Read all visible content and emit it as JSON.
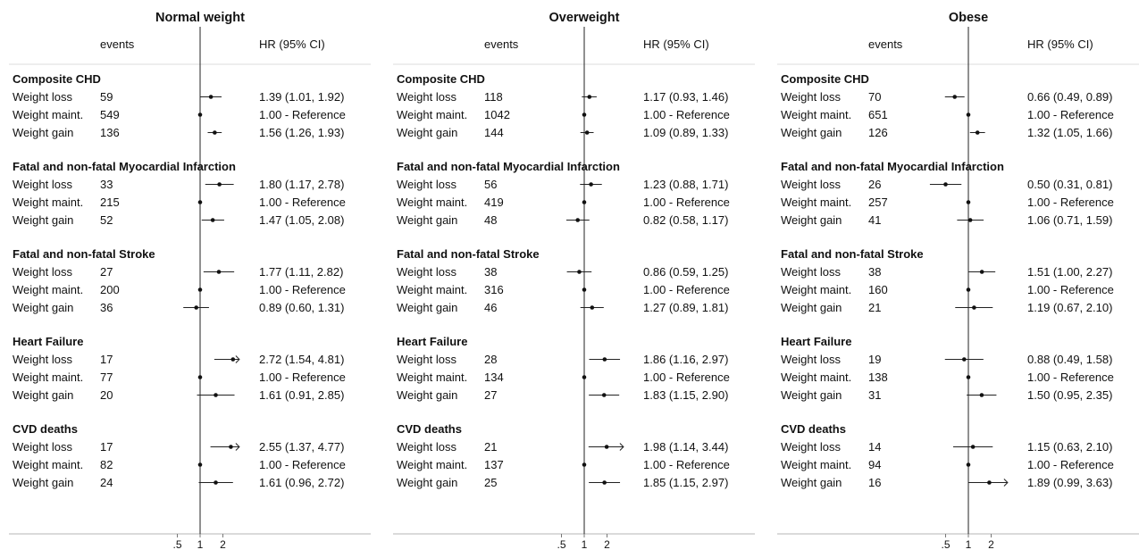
{
  "chart_data": {
    "type": "forest",
    "x_scale": "log",
    "x_ticks": [
      {
        "value": 0.5,
        "label": ".5"
      },
      {
        "value": 1,
        "label": "1"
      },
      {
        "value": 2,
        "label": "2"
      }
    ],
    "column_headers": {
      "events": "events",
      "hr": "HR (95% CI)"
    },
    "row_labels": [
      "Weight loss",
      "Weight maint.",
      "Weight gain"
    ],
    "panels": [
      {
        "title": "Normal weight",
        "groups": [
          {
            "name": "Composite CHD",
            "rows": [
              {
                "events": "59",
                "hr": 1.39,
                "lo": 1.01,
                "hi": 1.92,
                "text": "1.39 (1.01, 1.92)"
              },
              {
                "events": "549",
                "hr": 1,
                "lo": null,
                "hi": null,
                "text": "1.00 - Reference"
              },
              {
                "events": "136",
                "hr": 1.56,
                "lo": 1.26,
                "hi": 1.93,
                "text": "1.56 (1.26, 1.93)"
              }
            ]
          },
          {
            "name": "Fatal and non-fatal Myocardial Infarction",
            "rows": [
              {
                "events": "33",
                "hr": 1.8,
                "lo": 1.17,
                "hi": 2.78,
                "text": "1.80 (1.17, 2.78)"
              },
              {
                "events": "215",
                "hr": 1,
                "lo": null,
                "hi": null,
                "text": "1.00 - Reference"
              },
              {
                "events": "52",
                "hr": 1.47,
                "lo": 1.05,
                "hi": 2.08,
                "text": "1.47 (1.05, 2.08)"
              }
            ]
          },
          {
            "name": "Fatal and non-fatal Stroke",
            "rows": [
              {
                "events": "27",
                "hr": 1.77,
                "lo": 1.11,
                "hi": 2.82,
                "text": "1.77 (1.11, 2.82)"
              },
              {
                "events": "200",
                "hr": 1,
                "lo": null,
                "hi": null,
                "text": "1.00 - Reference"
              },
              {
                "events": "36",
                "hr": 0.89,
                "lo": 0.6,
                "hi": 1.31,
                "text": "0.89 (0.60, 1.31)"
              }
            ]
          },
          {
            "name": "Heart Failure",
            "rows": [
              {
                "events": "17",
                "hr": 2.72,
                "lo": 1.54,
                "hi": 4.81,
                "text": "2.72 (1.54, 4.81)"
              },
              {
                "events": "77",
                "hr": 1,
                "lo": null,
                "hi": null,
                "text": "1.00 - Reference"
              },
              {
                "events": "20",
                "hr": 1.61,
                "lo": 0.91,
                "hi": 2.85,
                "text": "1.61 (0.91, 2.85)"
              }
            ]
          },
          {
            "name": "CVD deaths",
            "rows": [
              {
                "events": "17",
                "hr": 2.55,
                "lo": 1.37,
                "hi": 4.77,
                "text": "2.55 (1.37, 4.77)"
              },
              {
                "events": "82",
                "hr": 1,
                "lo": null,
                "hi": null,
                "text": "1.00 - Reference"
              },
              {
                "events": "24",
                "hr": 1.61,
                "lo": 0.96,
                "hi": 2.72,
                "text": "1.61 (0.96, 2.72)"
              }
            ]
          }
        ]
      },
      {
        "title": "Overweight",
        "groups": [
          {
            "name": "Composite CHD",
            "rows": [
              {
                "events": "118",
                "hr": 1.17,
                "lo": 0.93,
                "hi": 1.46,
                "text": "1.17 (0.93, 1.46)"
              },
              {
                "events": "1042",
                "hr": 1,
                "lo": null,
                "hi": null,
                "text": "1.00 - Reference"
              },
              {
                "events": "144",
                "hr": 1.09,
                "lo": 0.89,
                "hi": 1.33,
                "text": "1.09 (0.89, 1.33)"
              }
            ]
          },
          {
            "name": "Fatal and non-fatal Myocardial Infarction",
            "rows": [
              {
                "events": "56",
                "hr": 1.23,
                "lo": 0.88,
                "hi": 1.71,
                "text": "1.23 (0.88, 1.71)"
              },
              {
                "events": "419",
                "hr": 1,
                "lo": null,
                "hi": null,
                "text": "1.00 - Reference"
              },
              {
                "events": "48",
                "hr": 0.82,
                "lo": 0.58,
                "hi": 1.17,
                "text": "0.82 (0.58, 1.17)"
              }
            ]
          },
          {
            "name": "Fatal and non-fatal Stroke",
            "rows": [
              {
                "events": "38",
                "hr": 0.86,
                "lo": 0.59,
                "hi": 1.25,
                "text": "0.86 (0.59, 1.25)"
              },
              {
                "events": "316",
                "hr": 1,
                "lo": null,
                "hi": null,
                "text": "1.00 - Reference"
              },
              {
                "events": "46",
                "hr": 1.27,
                "lo": 0.89,
                "hi": 1.81,
                "text": "1.27 (0.89, 1.81)"
              }
            ]
          },
          {
            "name": "Heart Failure",
            "rows": [
              {
                "events": "28",
                "hr": 1.86,
                "lo": 1.16,
                "hi": 2.97,
                "text": "1.86 (1.16, 2.97)"
              },
              {
                "events": "134",
                "hr": 1,
                "lo": null,
                "hi": null,
                "text": "1.00 - Reference"
              },
              {
                "events": "27",
                "hr": 1.83,
                "lo": 1.15,
                "hi": 2.9,
                "text": "1.83 (1.15, 2.90)"
              }
            ]
          },
          {
            "name": "CVD deaths",
            "rows": [
              {
                "events": "21",
                "hr": 1.98,
                "lo": 1.14,
                "hi": 3.44,
                "text": "1.98 (1.14, 3.44)"
              },
              {
                "events": "137",
                "hr": 1,
                "lo": null,
                "hi": null,
                "text": "1.00 - Reference"
              },
              {
                "events": "25",
                "hr": 1.85,
                "lo": 1.15,
                "hi": 2.97,
                "text": "1.85 (1.15, 2.97)"
              }
            ]
          }
        ]
      },
      {
        "title": "Obese",
        "groups": [
          {
            "name": "Composite CHD",
            "rows": [
              {
                "events": "70",
                "hr": 0.66,
                "lo": 0.49,
                "hi": 0.89,
                "text": "0.66 (0.49, 0.89)"
              },
              {
                "events": "651",
                "hr": 1,
                "lo": null,
                "hi": null,
                "text": "1.00 - Reference"
              },
              {
                "events": "126",
                "hr": 1.32,
                "lo": 1.05,
                "hi": 1.66,
                "text": "1.32 (1.05, 1.66)"
              }
            ]
          },
          {
            "name": "Fatal and non-fatal Myocardial Infarction",
            "rows": [
              {
                "events": "26",
                "hr": 0.5,
                "lo": 0.31,
                "hi": 0.81,
                "text": "0.50 (0.31, 0.81)"
              },
              {
                "events": "257",
                "hr": 1,
                "lo": null,
                "hi": null,
                "text": "1.00 - Reference"
              },
              {
                "events": "41",
                "hr": 1.06,
                "lo": 0.71,
                "hi": 1.59,
                "text": "1.06 (0.71, 1.59)"
              }
            ]
          },
          {
            "name": "Fatal and non-fatal Stroke",
            "rows": [
              {
                "events": "38",
                "hr": 1.51,
                "lo": 1.0,
                "hi": 2.27,
                "text": "1.51 (1.00, 2.27)"
              },
              {
                "events": "160",
                "hr": 1,
                "lo": null,
                "hi": null,
                "text": "1.00 - Reference"
              },
              {
                "events": "21",
                "hr": 1.19,
                "lo": 0.67,
                "hi": 2.1,
                "text": "1.19 (0.67, 2.10)"
              }
            ]
          },
          {
            "name": "Heart Failure",
            "rows": [
              {
                "events": "19",
                "hr": 0.88,
                "lo": 0.49,
                "hi": 1.58,
                "text": "0.88 (0.49, 1.58)"
              },
              {
                "events": "138",
                "hr": 1,
                "lo": null,
                "hi": null,
                "text": "1.00 - Reference"
              },
              {
                "events": "31",
                "hr": 1.5,
                "lo": 0.95,
                "hi": 2.35,
                "text": "1.50 (0.95, 2.35)"
              }
            ]
          },
          {
            "name": "CVD deaths",
            "rows": [
              {
                "events": "14",
                "hr": 1.15,
                "lo": 0.63,
                "hi": 2.1,
                "text": "1.15 (0.63, 2.10)"
              },
              {
                "events": "94",
                "hr": 1,
                "lo": null,
                "hi": null,
                "text": "1.00 - Reference"
              },
              {
                "events": "16",
                "hr": 1.89,
                "lo": 0.99,
                "hi": 3.63,
                "text": "1.89 (0.99, 3.63)"
              }
            ]
          }
        ]
      }
    ]
  }
}
